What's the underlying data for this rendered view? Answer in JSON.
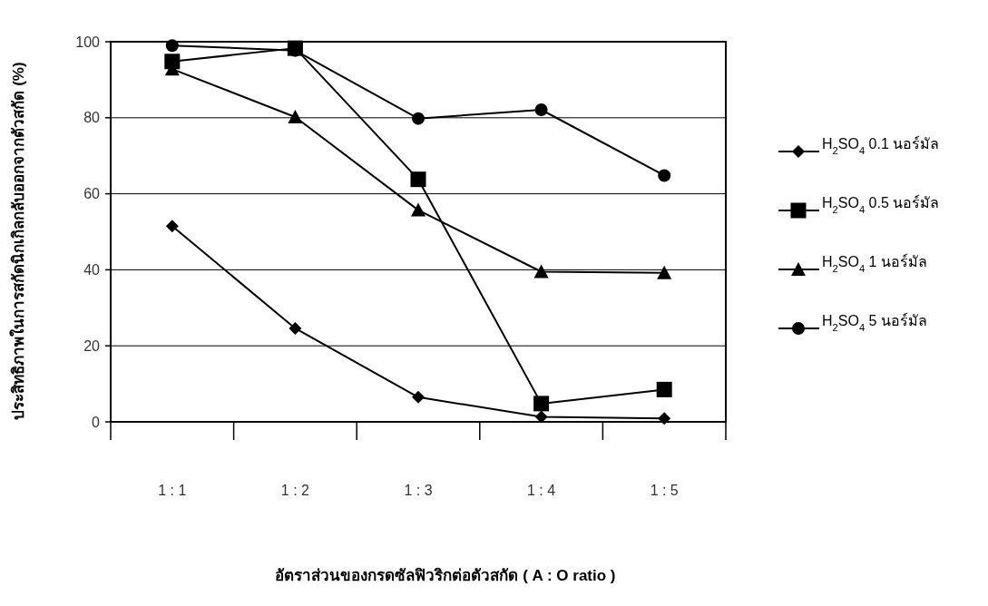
{
  "chart_data": {
    "type": "line",
    "xlabel": "อัตราส่วนของกรดซัลฟิวริกต่อตัวสกัด ( A : O ratio )",
    "ylabel": "ประสิทธิภาพในการสกัดนิกเกิลกลับออกจากตัวสกัด (%)",
    "categories": [
      "1 : 1",
      "1 : 2",
      "1 : 3",
      "1 : 4",
      "1 : 5"
    ],
    "series": [
      {
        "name": "H$_{2}$SO$_{4}$ 0.1 นอร์มัล",
        "color": "#000000",
        "marker": "diamond",
        "values": [
          51.5,
          24.6,
          6.5,
          1.3,
          0.9
        ]
      },
      {
        "name": "H$_{2}$SO$_{4}$ 0.5 นอร์มัล",
        "color": "#000000",
        "marker": "square",
        "values": [
          94.8,
          98.3,
          63.8,
          4.8,
          8.5
        ]
      },
      {
        "name": "H$_{2}$SO$_{4}$ 1 นอร์มัล",
        "color": "#000000",
        "marker": "triangle",
        "values": [
          92.8,
          80.2,
          55.7,
          39.5,
          39.2
        ]
      },
      {
        "name": "H$_{2}$SO$_{4}$ 5 นอร์มัล",
        "color": "#000000",
        "marker": "circle",
        "values": [
          99.0,
          97.7,
          79.8,
          82.1,
          64.8
        ]
      }
    ],
    "ylim": [
      0,
      100
    ],
    "yticks": [
      0,
      20,
      40,
      60,
      80,
      100
    ],
    "grid": "y",
    "legend": "right"
  }
}
